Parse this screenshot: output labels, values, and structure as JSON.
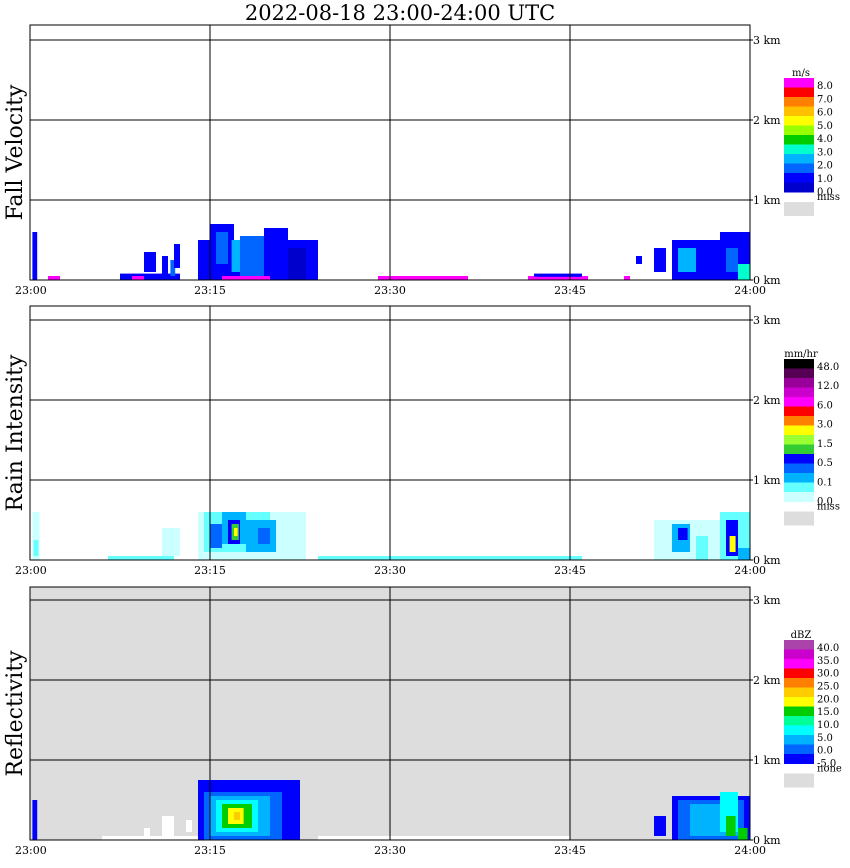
{
  "title": "2022-08-18   23:00-24:00 UTC",
  "chart_data": [
    {
      "type": "heatmap",
      "ylabel": "Fall Velocity",
      "x_ticks": [
        "23:00",
        "23:15",
        "23:30",
        "23:45",
        "24:00"
      ],
      "y_ticks": [
        "0 km",
        "1 km",
        "2 km",
        "3 km"
      ],
      "ylim": [
        0,
        3.2
      ],
      "background": "#ffffff",
      "colorbar": {
        "unit": "m/s",
        "labels": [
          "8.0",
          "7.0",
          "6.0",
          "5.0",
          "4.0",
          "3.0",
          "2.0",
          "1.0",
          "0.0"
        ],
        "colors": [
          "#ff00ff",
          "#ff0000",
          "#ff7f00",
          "#ffc000",
          "#ffff00",
          "#99ff00",
          "#00cc00",
          "#00ffcc",
          "#00b3ff",
          "#0066ff",
          "#0000ff",
          "#0000cc"
        ],
        "missing_label": "miss",
        "missing_color": "#dddddd"
      },
      "cells": [
        {
          "t0": 0.2,
          "t1": 0.6,
          "h0": 0.0,
          "h1": 0.6,
          "c": "#0000ff"
        },
        {
          "t0": 1.5,
          "t1": 2.5,
          "h0": 0.0,
          "h1": 0.05,
          "c": "#ff00ff"
        },
        {
          "t0": 7.5,
          "t1": 12.5,
          "h0": 0.0,
          "h1": 0.08,
          "c": "#0000ff"
        },
        {
          "t0": 8.5,
          "t1": 9.5,
          "h0": 0.0,
          "h1": 0.05,
          "c": "#ff00ff"
        },
        {
          "t0": 9.5,
          "t1": 10.5,
          "h0": 0.1,
          "h1": 0.35,
          "c": "#0000ff"
        },
        {
          "t0": 11.0,
          "t1": 11.5,
          "h0": 0.05,
          "h1": 0.3,
          "c": "#0000ff"
        },
        {
          "t0": 11.7,
          "t1": 12.1,
          "h0": 0.05,
          "h1": 0.25,
          "c": "#0066ff"
        },
        {
          "t0": 12.0,
          "t1": 12.5,
          "h0": 0.15,
          "h1": 0.45,
          "c": "#0000ff"
        },
        {
          "t0": 14.0,
          "t1": 24.0,
          "h0": 0.0,
          "h1": 0.5,
          "c": "#0000ff"
        },
        {
          "t0": 15.0,
          "t1": 17.0,
          "h0": 0.1,
          "h1": 0.7,
          "c": "#0000ff"
        },
        {
          "t0": 15.5,
          "t1": 16.5,
          "h0": 0.2,
          "h1": 0.6,
          "c": "#0066ff"
        },
        {
          "t0": 16.8,
          "t1": 17.5,
          "h0": 0.1,
          "h1": 0.5,
          "c": "#00b3ff"
        },
        {
          "t0": 17.5,
          "t1": 19.5,
          "h0": 0.0,
          "h1": 0.55,
          "c": "#0066ff"
        },
        {
          "t0": 19.5,
          "t1": 21.5,
          "h0": 0.0,
          "h1": 0.65,
          "c": "#0000ff"
        },
        {
          "t0": 21.5,
          "t1": 23.0,
          "h0": 0.0,
          "h1": 0.4,
          "c": "#0000cc"
        },
        {
          "t0": 16.0,
          "t1": 20.0,
          "h0": 0.0,
          "h1": 0.05,
          "c": "#ff00ff"
        },
        {
          "t0": 29.0,
          "t1": 36.5,
          "h0": 0.0,
          "h1": 0.05,
          "c": "#ff00ff"
        },
        {
          "t0": 41.5,
          "t1": 46.5,
          "h0": 0.0,
          "h1": 0.05,
          "c": "#ff00ff"
        },
        {
          "t0": 42.0,
          "t1": 46.0,
          "h0": 0.04,
          "h1": 0.08,
          "c": "#0000ff"
        },
        {
          "t0": 49.5,
          "t1": 50.0,
          "h0": 0.0,
          "h1": 0.05,
          "c": "#ff00ff"
        },
        {
          "t0": 50.5,
          "t1": 51.0,
          "h0": 0.2,
          "h1": 0.3,
          "c": "#0000ff"
        },
        {
          "t0": 52.0,
          "t1": 53.0,
          "h0": 0.1,
          "h1": 0.4,
          "c": "#0000ff"
        },
        {
          "t0": 53.5,
          "t1": 57.5,
          "h0": 0.0,
          "h1": 0.5,
          "c": "#0000ff"
        },
        {
          "t0": 54.0,
          "t1": 55.5,
          "h0": 0.1,
          "h1": 0.4,
          "c": "#00b3ff"
        },
        {
          "t0": 57.5,
          "t1": 60.0,
          "h0": 0.0,
          "h1": 0.6,
          "c": "#0000ff"
        },
        {
          "t0": 58.0,
          "t1": 59.0,
          "h0": 0.1,
          "h1": 0.4,
          "c": "#0066ff"
        },
        {
          "t0": 59.0,
          "t1": 60.0,
          "h0": 0.0,
          "h1": 0.2,
          "c": "#00ffcc"
        }
      ]
    },
    {
      "type": "heatmap",
      "ylabel": "Rain Intensity",
      "x_ticks": [
        "23:00",
        "23:15",
        "23:30",
        "23:45",
        "24:00"
      ],
      "y_ticks": [
        "0 km",
        "1 km",
        "2 km",
        "3 km"
      ],
      "ylim": [
        0,
        3.2
      ],
      "background": "#ffffff",
      "colorbar": {
        "unit": "mm/hr",
        "labels": [
          "48.0",
          "12.0",
          "6.0",
          "3.0",
          "1.5",
          "0.5",
          "0.1",
          "0.0"
        ],
        "colors": [
          "#000000",
          "#550055",
          "#990099",
          "#cc00cc",
          "#ff00ff",
          "#ff0000",
          "#ff7f00",
          "#ffff00",
          "#99ff33",
          "#33cc33",
          "#0000ff",
          "#0066ff",
          "#00b3ff",
          "#66ffff",
          "#ccffff"
        ],
        "missing_label": "miss",
        "missing_color": "#dddddd"
      },
      "cells": [
        {
          "t0": 0.2,
          "t1": 0.8,
          "h0": 0.0,
          "h1": 0.6,
          "c": "#ccffff"
        },
        {
          "t0": 0.3,
          "t1": 0.7,
          "h0": 0.05,
          "h1": 0.25,
          "c": "#66ffff"
        },
        {
          "t0": 6.5,
          "t1": 12.0,
          "h0": 0.0,
          "h1": 0.05,
          "c": "#66ffff"
        },
        {
          "t0": 11.0,
          "t1": 12.5,
          "h0": 0.05,
          "h1": 0.4,
          "c": "#ccffff"
        },
        {
          "t0": 14.0,
          "t1": 23.0,
          "h0": 0.0,
          "h1": 0.6,
          "c": "#ccffff"
        },
        {
          "t0": 14.5,
          "t1": 20.0,
          "h0": 0.1,
          "h1": 0.6,
          "c": "#66ffff"
        },
        {
          "t0": 15.0,
          "t1": 16.0,
          "h0": 0.15,
          "h1": 0.45,
          "c": "#0066ff"
        },
        {
          "t0": 16.0,
          "t1": 18.0,
          "h0": 0.2,
          "h1": 0.6,
          "c": "#00b3ff"
        },
        {
          "t0": 16.5,
          "t1": 17.5,
          "h0": 0.2,
          "h1": 0.5,
          "c": "#0000ff"
        },
        {
          "t0": 16.8,
          "t1": 17.4,
          "h0": 0.25,
          "h1": 0.45,
          "c": "#33cc33"
        },
        {
          "t0": 17.0,
          "t1": 17.3,
          "h0": 0.3,
          "h1": 0.4,
          "c": "#ffff00"
        },
        {
          "t0": 18.0,
          "t1": 20.5,
          "h0": 0.1,
          "h1": 0.5,
          "c": "#00b3ff"
        },
        {
          "t0": 19.0,
          "t1": 20.0,
          "h0": 0.2,
          "h1": 0.4,
          "c": "#0066ff"
        },
        {
          "t0": 24.0,
          "t1": 46.0,
          "h0": 0.0,
          "h1": 0.05,
          "c": "#66ffff"
        },
        {
          "t0": 52.0,
          "t1": 60.0,
          "h0": 0.0,
          "h1": 0.5,
          "c": "#ccffff"
        },
        {
          "t0": 53.5,
          "t1": 55.0,
          "h0": 0.1,
          "h1": 0.45,
          "c": "#00b3ff"
        },
        {
          "t0": 54.0,
          "t1": 54.8,
          "h0": 0.25,
          "h1": 0.4,
          "c": "#0000ff"
        },
        {
          "t0": 55.5,
          "t1": 56.5,
          "h0": 0.0,
          "h1": 0.3,
          "c": "#66ffff"
        },
        {
          "t0": 57.5,
          "t1": 60.0,
          "h0": 0.0,
          "h1": 0.6,
          "c": "#66ffff"
        },
        {
          "t0": 58.0,
          "t1": 59.0,
          "h0": 0.05,
          "h1": 0.5,
          "c": "#0000ff"
        },
        {
          "t0": 58.3,
          "t1": 58.8,
          "h0": 0.1,
          "h1": 0.3,
          "c": "#ffff00"
        },
        {
          "t0": 59.0,
          "t1": 60.0,
          "h0": 0.0,
          "h1": 0.15,
          "c": "#00b3ff"
        }
      ]
    },
    {
      "type": "heatmap",
      "ylabel": "Reflectivity",
      "x_ticks": [
        "23:00",
        "23:15",
        "23:30",
        "23:45",
        "24:00"
      ],
      "y_ticks": [
        "0 km",
        "1 km",
        "2 km",
        "3 km"
      ],
      "ylim": [
        0,
        3.2
      ],
      "background": "#dddddd",
      "colorbar": {
        "unit": "dBZ",
        "labels": [
          "40.0",
          "35.0",
          "30.0",
          "25.0",
          "20.0",
          "15.0",
          "10.0",
          "5.0",
          "0.0",
          "-5.0"
        ],
        "colors": [
          "#aa44aa",
          "#cc00cc",
          "#ff00ff",
          "#ff0000",
          "#ff7f00",
          "#ffcc00",
          "#ffff00",
          "#00cc00",
          "#00ff99",
          "#00ffff",
          "#00b3ff",
          "#0066ff",
          "#0000ff"
        ],
        "missing_label": "none",
        "missing_color": "#dddddd"
      },
      "cells": [
        {
          "t0": 6.0,
          "t1": 14.0,
          "h0": 0.0,
          "h1": 0.05,
          "c": "#ffffff"
        },
        {
          "t0": 9.5,
          "t1": 10.0,
          "h0": 0.05,
          "h1": 0.15,
          "c": "#ffffff"
        },
        {
          "t0": 11.0,
          "t1": 12.0,
          "h0": 0.05,
          "h1": 0.3,
          "c": "#ffffff"
        },
        {
          "t0": 13.0,
          "t1": 13.5,
          "h0": 0.1,
          "h1": 0.25,
          "c": "#ffffff"
        },
        {
          "t0": 24.0,
          "t1": 45.0,
          "h0": 0.0,
          "h1": 0.05,
          "c": "#ffffff"
        },
        {
          "t0": 0.2,
          "t1": 0.6,
          "h0": 0.0,
          "h1": 0.5,
          "c": "#0000ff"
        },
        {
          "t0": 14.0,
          "t1": 22.5,
          "h0": 0.0,
          "h1": 0.75,
          "c": "#0000ff"
        },
        {
          "t0": 14.5,
          "t1": 21.0,
          "h0": 0.0,
          "h1": 0.6,
          "c": "#0066ff"
        },
        {
          "t0": 15.0,
          "t1": 20.0,
          "h0": 0.05,
          "h1": 0.55,
          "c": "#00b3ff"
        },
        {
          "t0": 15.5,
          "t1": 19.0,
          "h0": 0.1,
          "h1": 0.5,
          "c": "#00ffff"
        },
        {
          "t0": 16.0,
          "t1": 18.5,
          "h0": 0.15,
          "h1": 0.45,
          "c": "#00cc00"
        },
        {
          "t0": 16.5,
          "t1": 17.8,
          "h0": 0.2,
          "h1": 0.4,
          "c": "#ffff00"
        },
        {
          "t0": 17.0,
          "t1": 17.5,
          "h0": 0.25,
          "h1": 0.35,
          "c": "#ffcc00"
        },
        {
          "t0": 52.0,
          "t1": 53.0,
          "h0": 0.05,
          "h1": 0.3,
          "c": "#0000ff"
        },
        {
          "t0": 53.5,
          "t1": 60.0,
          "h0": 0.0,
          "h1": 0.55,
          "c": "#0000ff"
        },
        {
          "t0": 54.0,
          "t1": 59.5,
          "h0": 0.0,
          "h1": 0.5,
          "c": "#0066ff"
        },
        {
          "t0": 55.0,
          "t1": 59.0,
          "h0": 0.05,
          "h1": 0.45,
          "c": "#00b3ff"
        },
        {
          "t0": 57.5,
          "t1": 59.0,
          "h0": 0.1,
          "h1": 0.6,
          "c": "#00ffff"
        },
        {
          "t0": 58.0,
          "t1": 58.8,
          "h0": 0.05,
          "h1": 0.3,
          "c": "#00cc00"
        },
        {
          "t0": 59.0,
          "t1": 59.8,
          "h0": 0.0,
          "h1": 0.15,
          "c": "#00cc00"
        }
      ]
    }
  ]
}
